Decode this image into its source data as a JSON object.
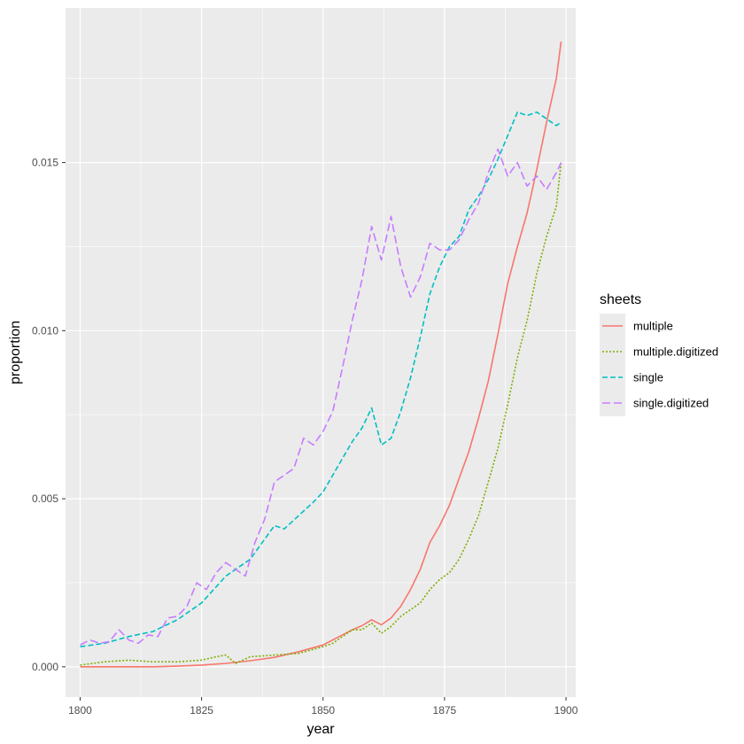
{
  "chart_data": {
    "type": "line",
    "xlabel": "year",
    "ylabel": "proportion",
    "xlim": [
      1797,
      1902
    ],
    "ylim": [
      -0.0009,
      0.0196
    ],
    "x_ticks": [
      1800,
      1825,
      1850,
      1875,
      1900
    ],
    "x_tick_labels": [
      "1800",
      "1825",
      "1850",
      "1875",
      "1900"
    ],
    "y_ticks": [
      0.0,
      0.005,
      0.01,
      0.015
    ],
    "y_tick_labels": [
      "0.000",
      "0.005",
      "0.010",
      "0.015"
    ],
    "grid": true,
    "legend": {
      "title": "sheets",
      "position": "right"
    },
    "series": [
      {
        "name": "multiple",
        "color": "#F8766D",
        "dash": "solid",
        "x": [
          1800,
          1805,
          1810,
          1815,
          1820,
          1825,
          1830,
          1835,
          1840,
          1845,
          1850,
          1852,
          1854,
          1856,
          1858,
          1860,
          1862,
          1864,
          1866,
          1868,
          1870,
          1872,
          1874,
          1876,
          1878,
          1880,
          1882,
          1884,
          1886,
          1888,
          1890,
          1892,
          1894,
          1896,
          1898,
          1899
        ],
        "y": [
          0.0,
          0.0,
          0.0,
          0.0,
          2e-05,
          5e-05,
          0.0001,
          0.00018,
          0.00028,
          0.00045,
          0.00065,
          0.0008,
          0.00095,
          0.0011,
          0.00122,
          0.0014,
          0.00125,
          0.00145,
          0.0018,
          0.0023,
          0.0029,
          0.0037,
          0.0042,
          0.0048,
          0.0056,
          0.0064,
          0.0074,
          0.0085,
          0.0099,
          0.0114,
          0.0125,
          0.0135,
          0.0148,
          0.0162,
          0.0175,
          0.0186
        ]
      },
      {
        "name": "multiple.digitized",
        "color": "#7CAE00",
        "dash": "dotted",
        "x": [
          1800,
          1805,
          1810,
          1815,
          1820,
          1825,
          1828,
          1830,
          1832,
          1835,
          1840,
          1845,
          1850,
          1852,
          1854,
          1856,
          1858,
          1860,
          1862,
          1864,
          1866,
          1868,
          1870,
          1872,
          1874,
          1876,
          1878,
          1880,
          1882,
          1884,
          1886,
          1888,
          1890,
          1892,
          1894,
          1896,
          1898,
          1899
        ],
        "y": [
          5e-05,
          0.00015,
          0.0002,
          0.00015,
          0.00015,
          0.0002,
          0.0003,
          0.00035,
          0.0001,
          0.0003,
          0.00035,
          0.0004,
          0.0006,
          0.0007,
          0.0009,
          0.0011,
          0.0011,
          0.0013,
          0.001,
          0.0012,
          0.0015,
          0.0017,
          0.0019,
          0.0023,
          0.0026,
          0.0028,
          0.0032,
          0.0038,
          0.0045,
          0.0055,
          0.0065,
          0.0078,
          0.0092,
          0.0103,
          0.0117,
          0.0128,
          0.0137,
          0.015
        ]
      },
      {
        "name": "single",
        "color": "#00BFC4",
        "dash": "dashed",
        "x": [
          1800,
          1805,
          1810,
          1815,
          1820,
          1825,
          1830,
          1835,
          1838,
          1840,
          1842,
          1845,
          1848,
          1850,
          1852,
          1854,
          1856,
          1858,
          1860,
          1862,
          1864,
          1866,
          1868,
          1870,
          1872,
          1874,
          1876,
          1878,
          1880,
          1882,
          1884,
          1886,
          1888,
          1890,
          1892,
          1894,
          1896,
          1898,
          1899
        ],
        "y": [
          0.0006,
          0.0007,
          0.0009,
          0.00105,
          0.0014,
          0.0019,
          0.0027,
          0.0032,
          0.0038,
          0.0042,
          0.0041,
          0.0045,
          0.0049,
          0.0052,
          0.0057,
          0.0062,
          0.0067,
          0.0071,
          0.0077,
          0.0066,
          0.0068,
          0.0076,
          0.0086,
          0.0098,
          0.0111,
          0.0119,
          0.0125,
          0.0128,
          0.0136,
          0.014,
          0.0145,
          0.0151,
          0.0158,
          0.0165,
          0.0164,
          0.0165,
          0.0163,
          0.0161,
          0.0162
        ]
      },
      {
        "name": "single.digitized",
        "color": "#C77CFF",
        "dash": "longdash",
        "x": [
          1800,
          1802,
          1804,
          1806,
          1808,
          1810,
          1812,
          1814,
          1816,
          1818,
          1820,
          1822,
          1824,
          1826,
          1828,
          1830,
          1832,
          1834,
          1836,
          1838,
          1840,
          1842,
          1844,
          1846,
          1848,
          1850,
          1852,
          1854,
          1856,
          1858,
          1860,
          1862,
          1864,
          1866,
          1868,
          1870,
          1872,
          1874,
          1876,
          1878,
          1880,
          1882,
          1884,
          1886,
          1888,
          1890,
          1892,
          1894,
          1896,
          1898,
          1899
        ],
        "y": [
          0.00065,
          0.0008,
          0.0007,
          0.00075,
          0.0011,
          0.0008,
          0.0007,
          0.00095,
          0.0009,
          0.00145,
          0.0015,
          0.0018,
          0.0025,
          0.0023,
          0.0028,
          0.0031,
          0.0029,
          0.0027,
          0.0037,
          0.0044,
          0.0055,
          0.0057,
          0.0059,
          0.0068,
          0.0066,
          0.007,
          0.0076,
          0.0089,
          0.0103,
          0.0115,
          0.0131,
          0.0121,
          0.0134,
          0.0119,
          0.011,
          0.0116,
          0.0126,
          0.0124,
          0.0124,
          0.0127,
          0.0133,
          0.0138,
          0.0147,
          0.0154,
          0.0146,
          0.015,
          0.0143,
          0.0146,
          0.0142,
          0.0147,
          0.015
        ]
      }
    ]
  }
}
